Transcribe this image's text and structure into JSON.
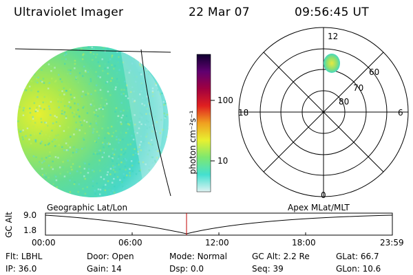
{
  "header": {
    "instrument": "Ultraviolet Imager",
    "date": "22 Mar 07",
    "time": "09:56:45 UT"
  },
  "colorbar": {
    "unit_label": "photon cm⁻²s⁻¹",
    "ticks": [
      "100",
      "10"
    ]
  },
  "polar_plot": {
    "mlt_labels": {
      "top": "12",
      "left": "18",
      "right": "6",
      "bottom": "0"
    },
    "lat_labels": [
      "60",
      "70",
      "80"
    ]
  },
  "orbit_plot": {
    "left_title": "Geographic Lat/Lon",
    "right_title": "Apex  MLat/MLT",
    "y_label": "GC Alt",
    "y_ticks": [
      "9.0",
      "1.8"
    ],
    "x_ticks": [
      "00:00",
      "06:00",
      "12:00",
      "18:00",
      "23:59"
    ]
  },
  "info_rows": [
    [
      {
        "key": "Flt:",
        "value": "LBHL"
      },
      {
        "key": "Door:",
        "value": "Open"
      },
      {
        "key": "Mode:",
        "value": "Normal"
      },
      {
        "key": "GC Alt:",
        "value": "2.2 Re"
      },
      {
        "key": "GLat:",
        "value": "66.7"
      }
    ],
    [
      {
        "key": "IP:",
        "value": "36.0"
      },
      {
        "key": "Gain:",
        "value": "14"
      },
      {
        "key": "Dsp:",
        "value": "0.0"
      },
      {
        "key": "Seq:",
        "value": "39"
      },
      {
        "key": "GLon:",
        "value": "10.6"
      }
    ]
  ],
  "colors": {
    "colorbar_stops": [
      "#dff2f2",
      "#44e0d0",
      "#7de870",
      "#e8f030",
      "#f0a020",
      "#e02020",
      "#a00040",
      "#600070",
      "#100030"
    ],
    "disk_base": "#44d8c8",
    "disk_bright": "#d0e830",
    "time_marker": "#c00000"
  }
}
